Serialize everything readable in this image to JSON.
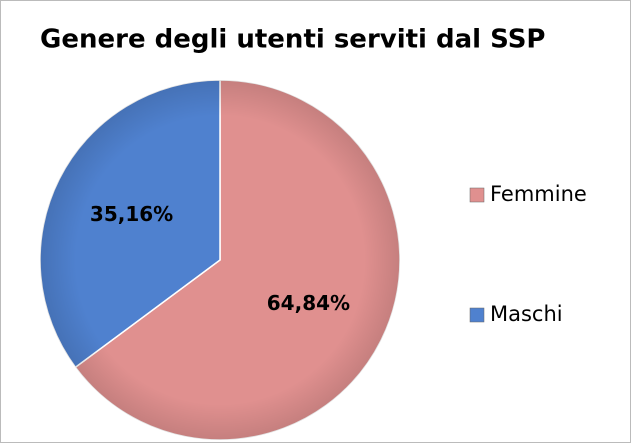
{
  "chart_data": {
    "type": "pie",
    "title": "Genere degli utenti serviti dal SSP",
    "categories": [
      "Femmine",
      "Maschi"
    ],
    "values": [
      64.84,
      35.16
    ],
    "value_labels": [
      "64,84%",
      "35,16%"
    ],
    "colors": [
      "#e0908f",
      "#4f81cf"
    ],
    "legend": "right"
  }
}
